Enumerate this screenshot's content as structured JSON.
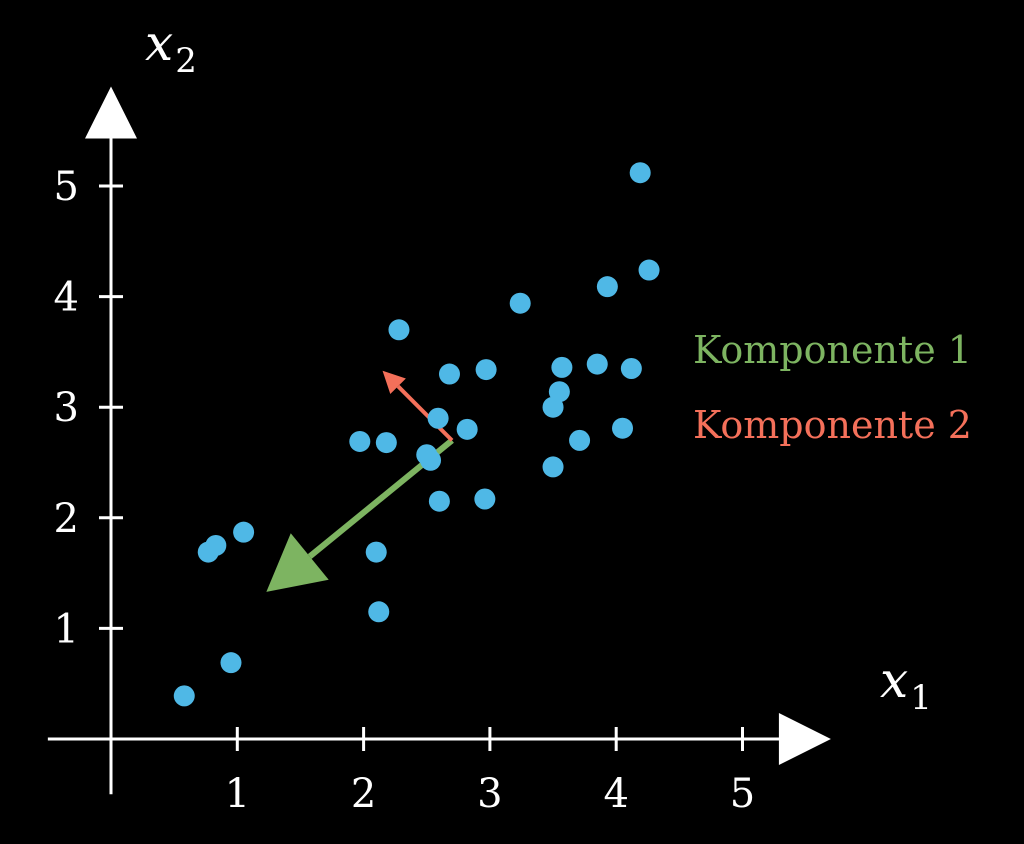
{
  "chart_data": {
    "type": "scatter",
    "title": "",
    "xlabel": "x",
    "xlabel_sub": "1",
    "ylabel": "x",
    "ylabel_sub": "2",
    "xlim": [
      -0.5,
      5.7
    ],
    "ylim": [
      -0.5,
      5.9
    ],
    "xticks": [
      1,
      2,
      3,
      4,
      5
    ],
    "yticks": [
      1,
      2,
      3,
      4,
      5
    ],
    "grid": false,
    "point_color": "#4fb8e6",
    "points": [
      [
        0.58,
        0.39
      ],
      [
        0.95,
        0.69
      ],
      [
        0.77,
        1.69
      ],
      [
        0.83,
        1.75
      ],
      [
        1.05,
        1.87
      ],
      [
        1.97,
        2.69
      ],
      [
        2.18,
        2.68
      ],
      [
        2.28,
        3.7
      ],
      [
        2.1,
        1.69
      ],
      [
        2.12,
        1.15
      ],
      [
        2.59,
        2.9
      ],
      [
        2.5,
        2.57
      ],
      [
        2.53,
        2.52
      ],
      [
        2.6,
        2.15
      ],
      [
        2.68,
        3.3
      ],
      [
        2.82,
        2.8
      ],
      [
        2.97,
        3.34
      ],
      [
        2.96,
        2.17
      ],
      [
        3.24,
        3.94
      ],
      [
        3.5,
        3.0
      ],
      [
        3.55,
        3.14
      ],
      [
        3.57,
        3.36
      ],
      [
        3.5,
        2.46
      ],
      [
        3.71,
        2.7
      ],
      [
        3.85,
        3.39
      ],
      [
        3.93,
        4.09
      ],
      [
        4.12,
        3.35
      ],
      [
        4.05,
        2.81
      ],
      [
        4.19,
        5.12
      ],
      [
        4.26,
        4.24
      ]
    ],
    "vectors": [
      {
        "name": "Komponente 1",
        "color": "#7db461",
        "from": [
          2.7,
          2.7
        ],
        "to": [
          1.23,
          1.33
        ]
      },
      {
        "name": "Komponente 2",
        "color": "#f4705a",
        "from": [
          2.7,
          2.7
        ],
        "to": [
          2.15,
          3.33
        ]
      }
    ],
    "legend": [
      "Komponente 1",
      "Komponente 2"
    ],
    "legend_placement": "right"
  }
}
